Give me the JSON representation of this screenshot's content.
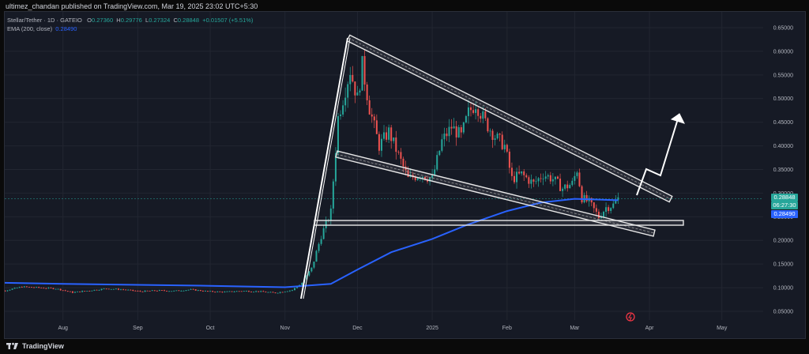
{
  "header": {
    "published": "ultimez_chandan published on TradingView.com, Mar 19, 2025 23:02 UTC+5:30"
  },
  "legend": {
    "symbol": "Stellar/Tether · 1D · GATEIO",
    "o_label": "O",
    "o": "0.27360",
    "h_label": "H",
    "h": "0.29776",
    "l_label": "L",
    "l": "0.27324",
    "c_label": "C",
    "c": "0.28848",
    "change": "+0.01507 (+5.51%)",
    "ema_label": "EMA (200, close)",
    "ema_value": "0.28490"
  },
  "price_tags": {
    "price": "0.28848",
    "countdown": "06:27:30",
    "ema": "0.28490"
  },
  "footer": {
    "brand": "TradingView"
  },
  "colors": {
    "up": "#26a69a",
    "down": "#ef5350",
    "ema": "#2962ff",
    "background": "#161a25",
    "grid": "#222631"
  },
  "chart_data": {
    "type": "candlestick",
    "symbol": "Stellar/Tether",
    "interval": "1D",
    "exchange": "GATEIO",
    "y_axis": {
      "scale": "linear",
      "ylim": [
        0.02,
        0.66
      ],
      "ticks": [
        "0.05000",
        "0.10000",
        "0.15000",
        "0.20000",
        "0.25000",
        "0.30000",
        "0.35000",
        "0.40000",
        "0.45000",
        "0.50000",
        "0.55000",
        "0.60000",
        "0.65000"
      ]
    },
    "x_axis": {
      "ticks": [
        "Aug",
        "Sep",
        "Oct",
        "Nov",
        "Dec",
        "2025",
        "Feb",
        "Mar",
        "Apr",
        "May"
      ]
    },
    "grid": true,
    "close_series": [
      {
        "x": "2024-07-01",
        "y": 0.09
      },
      {
        "x": "2024-07-08",
        "y": 0.094
      },
      {
        "x": "2024-07-15",
        "y": 0.102
      },
      {
        "x": "2024-07-22",
        "y": 0.1
      },
      {
        "x": "2024-07-29",
        "y": 0.098
      },
      {
        "x": "2024-08-05",
        "y": 0.09
      },
      {
        "x": "2024-08-12",
        "y": 0.094
      },
      {
        "x": "2024-08-19",
        "y": 0.098
      },
      {
        "x": "2024-08-26",
        "y": 0.096
      },
      {
        "x": "2024-09-02",
        "y": 0.092
      },
      {
        "x": "2024-09-09",
        "y": 0.094
      },
      {
        "x": "2024-09-16",
        "y": 0.093
      },
      {
        "x": "2024-09-23",
        "y": 0.096
      },
      {
        "x": "2024-09-30",
        "y": 0.092
      },
      {
        "x": "2024-10-07",
        "y": 0.091
      },
      {
        "x": "2024-10-14",
        "y": 0.093
      },
      {
        "x": "2024-10-21",
        "y": 0.092
      },
      {
        "x": "2024-10-28",
        "y": 0.089
      },
      {
        "x": "2024-11-04",
        "y": 0.095
      },
      {
        "x": "2024-11-08",
        "y": 0.11
      },
      {
        "x": "2024-11-12",
        "y": 0.14
      },
      {
        "x": "2024-11-16",
        "y": 0.21
      },
      {
        "x": "2024-11-20",
        "y": 0.26
      },
      {
        "x": "2024-11-23",
        "y": 0.46
      },
      {
        "x": "2024-11-25",
        "y": 0.5
      },
      {
        "x": "2024-11-28",
        "y": 0.56
      },
      {
        "x": "2024-12-01",
        "y": 0.5
      },
      {
        "x": "2024-12-03",
        "y": 0.57
      },
      {
        "x": "2024-12-06",
        "y": 0.48
      },
      {
        "x": "2024-12-10",
        "y": 0.4
      },
      {
        "x": "2024-12-14",
        "y": 0.43
      },
      {
        "x": "2024-12-18",
        "y": 0.38
      },
      {
        "x": "2024-12-22",
        "y": 0.33
      },
      {
        "x": "2024-12-27",
        "y": 0.34
      },
      {
        "x": "2025-01-01",
        "y": 0.33
      },
      {
        "x": "2025-01-05",
        "y": 0.41
      },
      {
        "x": "2025-01-09",
        "y": 0.44
      },
      {
        "x": "2025-01-13",
        "y": 0.42
      },
      {
        "x": "2025-01-16",
        "y": 0.47
      },
      {
        "x": "2025-01-19",
        "y": 0.49
      },
      {
        "x": "2025-01-23",
        "y": 0.45
      },
      {
        "x": "2025-01-27",
        "y": 0.42
      },
      {
        "x": "2025-01-31",
        "y": 0.4
      },
      {
        "x": "2025-02-03",
        "y": 0.33
      },
      {
        "x": "2025-02-07",
        "y": 0.34
      },
      {
        "x": "2025-02-12",
        "y": 0.32
      },
      {
        "x": "2025-02-16",
        "y": 0.34
      },
      {
        "x": "2025-02-20",
        "y": 0.33
      },
      {
        "x": "2025-02-24",
        "y": 0.31
      },
      {
        "x": "2025-02-28",
        "y": 0.32
      },
      {
        "x": "2025-03-02",
        "y": 0.35
      },
      {
        "x": "2025-03-04",
        "y": 0.29
      },
      {
        "x": "2025-03-07",
        "y": 0.28
      },
      {
        "x": "2025-03-11",
        "y": 0.25
      },
      {
        "x": "2025-03-14",
        "y": 0.27
      },
      {
        "x": "2025-03-17",
        "y": 0.275
      },
      {
        "x": "2025-03-19",
        "y": 0.28848
      }
    ],
    "ema_200": [
      {
        "x": "2024-07-01",
        "y": 0.111
      },
      {
        "x": "2024-08-01",
        "y": 0.108
      },
      {
        "x": "2024-09-01",
        "y": 0.106
      },
      {
        "x": "2024-10-01",
        "y": 0.104
      },
      {
        "x": "2024-11-01",
        "y": 0.101
      },
      {
        "x": "2024-11-20",
        "y": 0.108
      },
      {
        "x": "2024-12-01",
        "y": 0.138
      },
      {
        "x": "2024-12-15",
        "y": 0.175
      },
      {
        "x": "2025-01-01",
        "y": 0.203
      },
      {
        "x": "2025-01-15",
        "y": 0.232
      },
      {
        "x": "2025-02-01",
        "y": 0.262
      },
      {
        "x": "2025-02-15",
        "y": 0.28
      },
      {
        "x": "2025-03-01",
        "y": 0.288
      },
      {
        "x": "2025-03-19",
        "y": 0.2849
      }
    ],
    "last_price": 0.28848,
    "ema_last": 0.2849
  }
}
